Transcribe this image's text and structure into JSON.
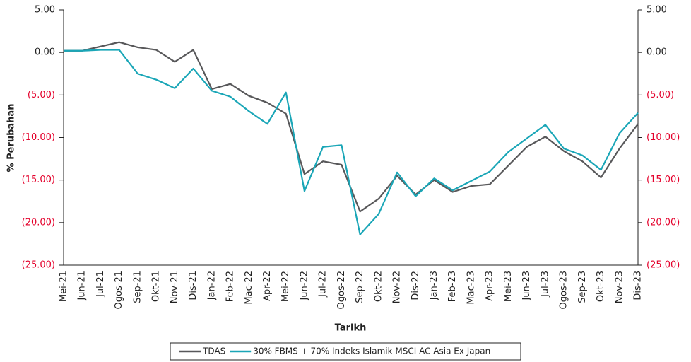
{
  "chart_data": {
    "type": "line",
    "xlabel": "Tarikh",
    "ylabel": "% Perubahan",
    "categories": [
      "Mei-21",
      "Jun-21",
      "Jul-21",
      "Ogos-21",
      "Sep-21",
      "Okt-21",
      "Nov-21",
      "Dis-21",
      "Jan-22",
      "Feb-22",
      "Mac-22",
      "Apr-22",
      "Mei-22",
      "Jun-22",
      "Jul-22",
      "Ogos-22",
      "Sep-22",
      "Okt-22",
      "Nov-22",
      "Dis-22",
      "Jan-23",
      "Feb-23",
      "Mac-23",
      "Apr-23",
      "Mei-23",
      "Jun-23",
      "Jul-23",
      "Ogos-23",
      "Sep-23",
      "Okt-23",
      "Nov-23",
      "Dis-23"
    ],
    "series": [
      {
        "name": "TDAS",
        "color": "#58585a",
        "values": [
          0.2,
          0.2,
          0.7,
          1.2,
          0.6,
          0.3,
          -1.1,
          0.3,
          -4.3,
          -3.7,
          -5.1,
          -5.9,
          -7.2,
          -14.3,
          -12.8,
          -13.2,
          -18.7,
          -17.2,
          -14.5,
          -16.7,
          -15.0,
          -16.4,
          -15.7,
          -15.5,
          -13.3,
          -11.1,
          -9.9,
          -11.6,
          -12.8,
          -14.7,
          -11.3,
          -8.4
        ]
      },
      {
        "name": "30% FBMS + 70% Indeks Islamik MSCI AC Asia Ex Japan",
        "color": "#1aa6b7",
        "values": [
          0.2,
          0.2,
          0.3,
          0.3,
          -2.5,
          -3.2,
          -4.2,
          -1.9,
          -4.5,
          -5.2,
          -6.9,
          -8.4,
          -4.7,
          -16.3,
          -11.1,
          -10.9,
          -21.4,
          -19.0,
          -14.1,
          -16.9,
          -14.8,
          -16.2,
          -15.1,
          -14.0,
          -11.7,
          -10.1,
          -8.5,
          -11.3,
          -12.1,
          -13.8,
          -9.5,
          -7.1
        ]
      }
    ],
    "ylim": [
      -25,
      5
    ],
    "yticks": [
      {
        "value": 5,
        "label": "5.00"
      },
      {
        "value": 0,
        "label": "0.00"
      },
      {
        "value": -5,
        "label": "(5.00)"
      },
      {
        "value": -10,
        "label": "(10.00)"
      },
      {
        "value": -15,
        "label": "(15.00)"
      },
      {
        "value": -20,
        "label": "(20.00)"
      },
      {
        "value": -25,
        "label": "(25.00)"
      }
    ],
    "y2lim": [
      -25,
      5
    ],
    "y2ticks": [
      {
        "value": 5,
        "label": "5.00"
      },
      {
        "value": 0,
        "label": "0.00"
      },
      {
        "value": -5,
        "label": "(5.00)"
      },
      {
        "value": -10,
        "label": "(10.00)"
      },
      {
        "value": -15,
        "label": "(15.00)"
      },
      {
        "value": -20,
        "label": "(20.00)"
      },
      {
        "value": -25,
        "label": "(25.00)"
      }
    ],
    "negative_tick_color": "#e4002b",
    "legend": "bottom"
  }
}
